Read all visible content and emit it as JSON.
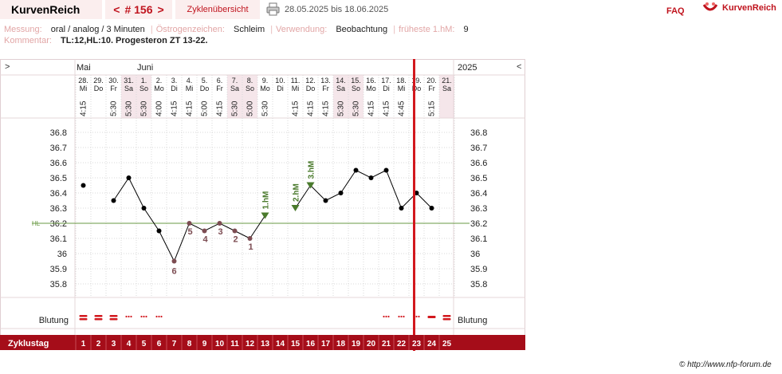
{
  "header": {
    "brand": "KurvenReich",
    "nav_prev": "<",
    "nav_label": "# 156",
    "nav_next": ">",
    "cycle_overview": "Zyklenübersicht",
    "print_icon": "printer-icon",
    "date_range": "28.05.2025 bis 18.06.2025",
    "faq": "FAQ",
    "logo_icon": "kurvenreich-logo-icon",
    "logo_text": "KurvenReich"
  },
  "info": {
    "messung_label": "Messung:",
    "messung_value": "oral / analog / 3 Minuten",
    "oestrogen_label": "Östrogenzeichen:",
    "oestrogen_value": "Schleim",
    "verwendung_label": "Verwendung:",
    "verwendung_value": "Beobachtung",
    "hm_label": "früheste 1.hM:",
    "hm_value": "9",
    "comment_label": "Kommentar:",
    "comment_value": "TL:12,HL:10. Progesteron ZT 13-22."
  },
  "chart_header": {
    "left_toggle": ">",
    "right_toggle": "<",
    "year": "2025",
    "months": [
      {
        "label": "Mai",
        "index": 0
      },
      {
        "label": "Juni",
        "index": 4
      }
    ],
    "colors": {
      "weekend": "#f5e6ea",
      "accent": "#a50d19",
      "hl": "#6a9a44",
      "dot": "#000000",
      "preovu": "#7c4c52",
      "hm": "#4a7a2c"
    }
  },
  "chart_data": {
    "type": "line",
    "ylabel_left": "",
    "ylim": [
      35.75,
      36.85
    ],
    "yticks": [
      "36.8",
      "36.7",
      "36.6",
      "36.5",
      "36.4",
      "36.3",
      "36.2",
      "36.1",
      "36",
      "35.9",
      "35.8"
    ],
    "ytick_values": [
      36.8,
      36.7,
      36.6,
      36.5,
      36.4,
      36.3,
      36.2,
      36.1,
      36.0,
      35.9,
      35.8
    ],
    "hl_label": "HL",
    "hl_value": 36.2,
    "cycle_days": [
      "1",
      "2",
      "3",
      "4",
      "5",
      "6",
      "7",
      "8",
      "9",
      "10",
      "11",
      "12",
      "13",
      "14",
      "15",
      "16",
      "17",
      "18",
      "19",
      "20",
      "21",
      "22",
      "23",
      "24",
      "25"
    ],
    "dates": [
      "28.",
      "29.",
      "30.",
      "31.",
      "1.",
      "2.",
      "3.",
      "4.",
      "5.",
      "6.",
      "7.",
      "8.",
      "9.",
      "10.",
      "11.",
      "12.",
      "13.",
      "14.",
      "15.",
      "16.",
      "17.",
      "18.",
      "19.",
      "20.",
      "21."
    ],
    "weekdays": [
      "Mi",
      "Do",
      "Fr",
      "Sa",
      "So",
      "Mo",
      "Di",
      "Mi",
      "Do",
      "Fr",
      "Sa",
      "So",
      "Mo",
      "Di",
      "Mi",
      "Do",
      "Fr",
      "Sa",
      "So",
      "Mo",
      "Di",
      "Mi",
      "Do",
      "Fr",
      "Sa"
    ],
    "weekend_days": [
      4,
      5,
      11,
      12,
      18,
      19,
      25
    ],
    "times": [
      "4:15",
      "",
      "5:30",
      "5:30",
      "5:30",
      "4:00",
      "4:15",
      "4:15",
      "5:00",
      "4:15",
      "5:30",
      "5:00",
      "5:30",
      "",
      "4:15",
      "4:15",
      "4:15",
      "5:30",
      "5:30",
      "4:15",
      "4:15",
      "4:45",
      "",
      "5:15",
      ""
    ],
    "temps": [
      36.45,
      null,
      36.35,
      36.5,
      36.3,
      36.15,
      35.95,
      36.2,
      36.15,
      36.2,
      36.15,
      36.1,
      36.25,
      null,
      36.3,
      36.45,
      36.35,
      36.4,
      36.55,
      36.5,
      36.55,
      36.3,
      36.4,
      36.3,
      null
    ],
    "line_segments": [
      [
        3,
        13
      ],
      [
        15,
        24
      ]
    ],
    "preovu_labels": [
      {
        "day": 7,
        "label": "6"
      },
      {
        "day": 8,
        "label": "5"
      },
      {
        "day": 9,
        "label": "4"
      },
      {
        "day": 10,
        "label": "3"
      },
      {
        "day": 11,
        "label": "2"
      },
      {
        "day": 12,
        "label": "1"
      }
    ],
    "hm_markers": [
      {
        "day": 13,
        "label": "1.hM"
      },
      {
        "day": 15,
        "label": "2.hM"
      },
      {
        "day": 16,
        "label": "3.hM"
      }
    ],
    "current_day_line": 22.5,
    "bleeding_label": "Blutung",
    "bleeding": [
      "heavy",
      "heavy",
      "heavy",
      "spot",
      "spot",
      "spot",
      "",
      "",
      "",
      "",
      "",
      "",
      "",
      "",
      "",
      "",
      "",
      "",
      "",
      "",
      "spot",
      "spot",
      "spot",
      "medium",
      "heavy"
    ],
    "cycle_row_label": "Zyklustag"
  },
  "footer": {
    "copyright": "© http://www.nfp-forum.de"
  }
}
